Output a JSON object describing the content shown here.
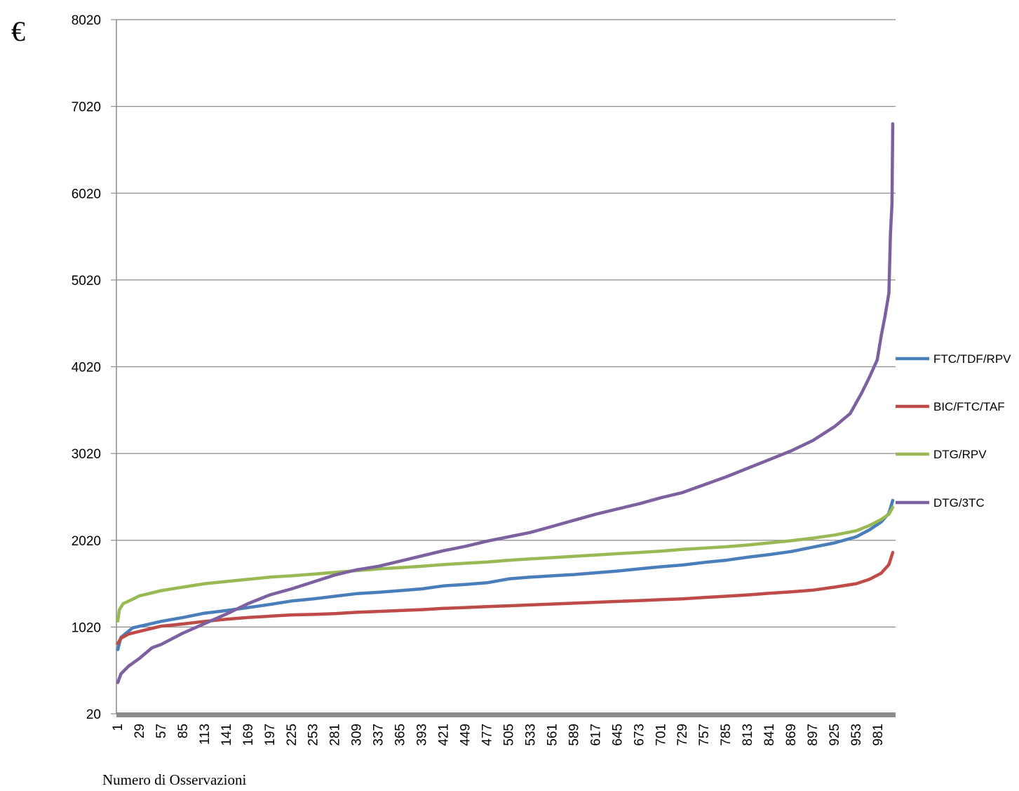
{
  "chart_data": {
    "type": "line",
    "title": "",
    "unit_label": "€",
    "xlabel": "Numero di Osservazioni",
    "ylabel": "",
    "ylim": [
      20,
      8020
    ],
    "xlim": [
      1,
      1000
    ],
    "y_ticks": [
      20,
      1020,
      2020,
      3020,
      4020,
      5020,
      6020,
      7020,
      8020
    ],
    "x_ticks": [
      1,
      29,
      57,
      85,
      113,
      141,
      169,
      197,
      225,
      253,
      281,
      309,
      337,
      365,
      393,
      421,
      449,
      477,
      505,
      533,
      561,
      589,
      617,
      645,
      673,
      701,
      729,
      757,
      785,
      813,
      841,
      869,
      897,
      925,
      953,
      981
    ],
    "grid": true,
    "legend_position": "right",
    "series": [
      {
        "name": "FTC/TDF/RPV",
        "color": "#4a7ebb",
        "points": [
          [
            1,
            760
          ],
          [
            5,
            900
          ],
          [
            20,
            1010
          ],
          [
            57,
            1085
          ],
          [
            85,
            1130
          ],
          [
            113,
            1180
          ],
          [
            141,
            1210
          ],
          [
            169,
            1245
          ],
          [
            197,
            1280
          ],
          [
            225,
            1320
          ],
          [
            253,
            1345
          ],
          [
            281,
            1375
          ],
          [
            309,
            1405
          ],
          [
            337,
            1420
          ],
          [
            365,
            1440
          ],
          [
            393,
            1460
          ],
          [
            421,
            1495
          ],
          [
            449,
            1510
          ],
          [
            477,
            1530
          ],
          [
            505,
            1575
          ],
          [
            533,
            1595
          ],
          [
            561,
            1610
          ],
          [
            589,
            1625
          ],
          [
            617,
            1645
          ],
          [
            645,
            1665
          ],
          [
            673,
            1690
          ],
          [
            701,
            1715
          ],
          [
            729,
            1735
          ],
          [
            757,
            1765
          ],
          [
            785,
            1790
          ],
          [
            813,
            1825
          ],
          [
            841,
            1855
          ],
          [
            869,
            1890
          ],
          [
            897,
            1940
          ],
          [
            925,
            1990
          ],
          [
            953,
            2060
          ],
          [
            970,
            2140
          ],
          [
            985,
            2230
          ],
          [
            995,
            2330
          ],
          [
            1000,
            2480
          ]
        ]
      },
      {
        "name": "BIC/FTC/TAF",
        "color": "#be4b48",
        "points": [
          [
            1,
            830
          ],
          [
            5,
            890
          ],
          [
            15,
            940
          ],
          [
            29,
            970
          ],
          [
            57,
            1030
          ],
          [
            85,
            1055
          ],
          [
            113,
            1085
          ],
          [
            141,
            1110
          ],
          [
            169,
            1130
          ],
          [
            197,
            1145
          ],
          [
            225,
            1160
          ],
          [
            253,
            1165
          ],
          [
            281,
            1175
          ],
          [
            309,
            1190
          ],
          [
            337,
            1200
          ],
          [
            365,
            1210
          ],
          [
            393,
            1220
          ],
          [
            421,
            1235
          ],
          [
            449,
            1245
          ],
          [
            477,
            1255
          ],
          [
            505,
            1265
          ],
          [
            533,
            1275
          ],
          [
            561,
            1285
          ],
          [
            589,
            1295
          ],
          [
            617,
            1305
          ],
          [
            645,
            1315
          ],
          [
            673,
            1325
          ],
          [
            701,
            1335
          ],
          [
            729,
            1345
          ],
          [
            757,
            1360
          ],
          [
            785,
            1375
          ],
          [
            813,
            1390
          ],
          [
            841,
            1410
          ],
          [
            869,
            1425
          ],
          [
            897,
            1445
          ],
          [
            925,
            1480
          ],
          [
            953,
            1520
          ],
          [
            970,
            1570
          ],
          [
            985,
            1640
          ],
          [
            995,
            1740
          ],
          [
            1000,
            1880
          ]
        ]
      },
      {
        "name": "DTG/RPV",
        "color": "#98b954",
        "points": [
          [
            1,
            1090
          ],
          [
            3,
            1220
          ],
          [
            8,
            1290
          ],
          [
            20,
            1340
          ],
          [
            29,
            1380
          ],
          [
            57,
            1440
          ],
          [
            85,
            1480
          ],
          [
            113,
            1520
          ],
          [
            141,
            1545
          ],
          [
            169,
            1570
          ],
          [
            197,
            1595
          ],
          [
            225,
            1610
          ],
          [
            253,
            1630
          ],
          [
            281,
            1650
          ],
          [
            309,
            1670
          ],
          [
            337,
            1690
          ],
          [
            365,
            1705
          ],
          [
            393,
            1720
          ],
          [
            421,
            1740
          ],
          [
            449,
            1755
          ],
          [
            477,
            1770
          ],
          [
            505,
            1790
          ],
          [
            533,
            1805
          ],
          [
            561,
            1820
          ],
          [
            589,
            1835
          ],
          [
            617,
            1850
          ],
          [
            645,
            1865
          ],
          [
            673,
            1880
          ],
          [
            701,
            1895
          ],
          [
            729,
            1915
          ],
          [
            757,
            1930
          ],
          [
            785,
            1945
          ],
          [
            813,
            1965
          ],
          [
            841,
            1990
          ],
          [
            869,
            2015
          ],
          [
            897,
            2045
          ],
          [
            925,
            2080
          ],
          [
            953,
            2130
          ],
          [
            970,
            2190
          ],
          [
            985,
            2260
          ],
          [
            995,
            2320
          ],
          [
            1000,
            2400
          ]
        ]
      },
      {
        "name": "DTG/3TC",
        "color": "#7d60a0",
        "points": [
          [
            1,
            380
          ],
          [
            5,
            480
          ],
          [
            15,
            570
          ],
          [
            29,
            660
          ],
          [
            45,
            780
          ],
          [
            57,
            820
          ],
          [
            85,
            950
          ],
          [
            113,
            1060
          ],
          [
            141,
            1170
          ],
          [
            169,
            1290
          ],
          [
            197,
            1390
          ],
          [
            225,
            1460
          ],
          [
            253,
            1540
          ],
          [
            281,
            1620
          ],
          [
            309,
            1680
          ],
          [
            337,
            1720
          ],
          [
            365,
            1780
          ],
          [
            393,
            1840
          ],
          [
            421,
            1900
          ],
          [
            449,
            1950
          ],
          [
            477,
            2010
          ],
          [
            505,
            2060
          ],
          [
            533,
            2110
          ],
          [
            561,
            2180
          ],
          [
            589,
            2250
          ],
          [
            617,
            2320
          ],
          [
            645,
            2380
          ],
          [
            673,
            2440
          ],
          [
            701,
            2510
          ],
          [
            729,
            2570
          ],
          [
            757,
            2660
          ],
          [
            785,
            2750
          ],
          [
            813,
            2850
          ],
          [
            841,
            2950
          ],
          [
            869,
            3050
          ],
          [
            897,
            3170
          ],
          [
            925,
            3330
          ],
          [
            945,
            3480
          ],
          [
            960,
            3720
          ],
          [
            970,
            3900
          ],
          [
            980,
            4100
          ],
          [
            985,
            4370
          ],
          [
            990,
            4600
          ],
          [
            995,
            4870
          ],
          [
            997,
            5550
          ],
          [
            999,
            5900
          ],
          [
            1000,
            6820
          ]
        ]
      }
    ]
  }
}
